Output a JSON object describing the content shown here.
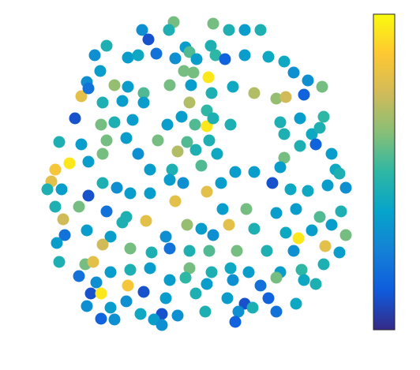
{
  "chart_data": {
    "type": "scatter",
    "x": [
      220,
      180,
      188,
      214,
      270,
      290,
      310,
      330,
      235,
      240,
      267,
      273,
      285,
      310,
      340,
      135,
      120,
      162,
      175,
      198,
      222,
      249,
      360,
      372,
      390,
      264,
      245,
      233,
      127,
      110,
      145,
      103,
      112,
      162,
      182,
      215,
      242,
      268,
      295,
      322,
      350,
      362,
      385,
      408,
      130,
      155,
      182,
      240,
      262,
      230,
      212,
      247,
      262,
      292,
      270,
      95,
      128,
      145,
      168,
      355,
      380,
      410,
      395,
      405,
      360,
      75,
      103,
      135,
      160,
      200,
      237,
      265,
      225,
      248,
      275,
      70,
      88,
      112,
      130,
      175,
      190,
      218,
      255,
      298,
      322,
      360,
      380,
      400,
      420,
      425,
      355,
      65,
      60,
      78,
      112,
      130,
      148,
      165,
      190,
      215,
      232,
      262,
      280,
      345,
      368,
      390,
      415,
      438,
      430,
      70,
      100,
      135,
      160,
      222,
      282,
      312,
      350,
      375,
      405,
      432,
      80,
      82,
      110,
      140,
      155,
      185,
      210,
      237,
      255,
      270,
      290,
      322,
      362,
      378,
      395,
      420,
      438,
      72,
      130,
      165,
      192,
      215,
      240,
      265,
      300,
      338,
      372,
      412,
      430,
      75,
      108,
      118,
      140,
      165,
      190,
      240,
      268,
      292,
      315,
      355,
      382,
      410,
      100,
      122,
      162,
      182,
      215,
      235,
      262,
      295,
      330,
      350,
      385,
      400,
      115,
      128,
      160,
      210,
      248,
      288,
      310,
      340,
      375,
      110,
      140,
      178,
      205,
      225,
      260,
      302,
      320,
      350,
      128,
      145,
      195,
      298,
      205
    ],
    "y": [
      28,
      38,
      50,
      38,
      30,
      38,
      38,
      38,
      60,
      66,
      58,
      70,
      75,
      70,
      72,
      58,
      70,
      73,
      70,
      68,
      74,
      75,
      78,
      92,
      102,
      98,
      92,
      90,
      90,
      104,
      108,
      122,
      112,
      110,
      118,
      108,
      108,
      118,
      110,
      118,
      125,
      123,
      120,
      110,
      130,
      128,
      130,
      130,
      140,
      148,
      158,
      158,
      160,
      158,
      150,
      150,
      158,
      155,
      152,
      155,
      150,
      148,
      170,
      162,
      170,
      180,
      183,
      178,
      175,
      178,
      180,
      178,
      192,
      190,
      195,
      215,
      207,
      205,
      195,
      195,
      215,
      215,
      210,
      218,
      218,
      200,
      185,
      183,
      195,
      215,
      212,
      230,
      240,
      240,
      248,
      232,
      238,
      245,
      245,
      228,
      232,
      243,
      232,
      232,
      240,
      242,
      235,
      238,
      220,
      262,
      262,
      268,
      275,
      255,
      265,
      265,
      270,
      265,
      275,
      268,
      278,
      298,
      292,
      300,
      282,
      280,
      300,
      285,
      290,
      298,
      285,
      290,
      295,
      302,
      292,
      285,
      298,
      308,
      310,
      315,
      320,
      315,
      318,
      318,
      318,
      318,
      318,
      312,
      320,
      332,
      335,
      332,
      345,
      342,
      340,
      340,
      345,
      340,
      345,
      345,
      342,
      335,
      350,
      358,
      362,
      370,
      355,
      352,
      360,
      355,
      362,
      352,
      355,
      360,
      372,
      372,
      382,
      378,
      372,
      378,
      385,
      378,
      385,
      388,
      390,
      398,
      398,
      400,
      395,
      395,
      390,
      395,
      404,
      405,
      405,
      408,
      412
    ],
    "c": [
      0.6,
      0.3,
      0.1,
      0.45,
      0.6,
      0.45,
      0.35,
      0.45,
      0.35,
      0.55,
      0.45,
      0.5,
      0.15,
      0.35,
      0.4,
      0.45,
      0.3,
      0.35,
      0.4,
      0.2,
      0.3,
      0.35,
      0.4,
      0.3,
      0.3,
      0.95,
      0.6,
      0.6,
      0.35,
      0.3,
      0.65,
      0.8,
      0.2,
      0.35,
      0.55,
      0.6,
      0.35,
      0.45,
      0.4,
      0.7,
      0.65,
      0.75,
      0.15,
      0.6,
      0.45,
      0.35,
      0.35,
      0.7,
      0.5,
      0.35,
      0.35,
      0.55,
      0.95,
      0.45,
      0.45,
      0.1,
      0.6,
      0.45,
      0.35,
      0.45,
      0.35,
      0.5,
      0.4,
      0.45,
      0.45,
      0.45,
      0.35,
      0.6,
      0.35,
      0.6,
      0.55,
      0.45,
      0.7,
      0.45,
      0.4,
      0.85,
      0.95,
      0.35,
      0.6,
      0.3,
      0.35,
      0.45,
      0.55,
      0.35,
      0.35,
      0.6,
      0.45,
      0.15,
      0.35,
      0.4,
      0.35,
      0.8,
      0.45,
      0.35,
      0.1,
      0.45,
      0.3,
      0.35,
      0.35,
      0.35,
      0.3,
      0.8,
      0.35,
      0.1,
      0.4,
      0.4,
      0.35,
      0.3,
      0.45,
      0.45,
      0.6,
      0.2,
      0.45,
      0.8,
      0.35,
      0.6,
      0.35,
      0.35,
      0.55,
      0.45,
      0.75,
      0.2,
      0.35,
      0.35,
      0.45,
      0.8,
      0.3,
      0.65,
      0.35,
      0.3,
      0.8,
      0.45,
      0.4,
      0.95,
      0.35,
      0.35,
      0.6,
      0.35,
      0.75,
      0.6,
      0.45,
      0.2,
      0.45,
      0.55,
      0.6,
      0.45,
      0.3,
      0.8,
      0.35,
      0.45,
      0.6,
      0.8,
      0.35,
      0.45,
      0.35,
      0.6,
      0.45,
      0.4,
      0.35,
      0.35,
      0.5,
      0.45,
      0.2,
      0.3,
      0.85,
      0.1,
      0.35,
      0.5,
      0.35,
      0.3,
      0.2,
      0.6,
      0.4,
      0.45,
      0.1,
      0.95,
      0.3,
      0.35,
      0.45,
      0.35,
      0.1,
      0.15,
      0.4,
      0.3,
      0.35,
      0.4,
      0.1,
      0.3,
      0.45,
      0.3,
      0.45,
      0.2,
      0.15,
      0.3,
      0.35,
      0.15,
      0.3
    ],
    "xlim": [
      40,
      460
    ],
    "ylim": [
      430,
      10
    ],
    "clim": [
      0,
      1
    ],
    "colormap": [
      "#352a87",
      "#0f5cdd",
      "#1481d6",
      "#06a4ca",
      "#2eb7a4",
      "#87bf77",
      "#d1bb59",
      "#fec832",
      "#f9fb0e"
    ]
  }
}
